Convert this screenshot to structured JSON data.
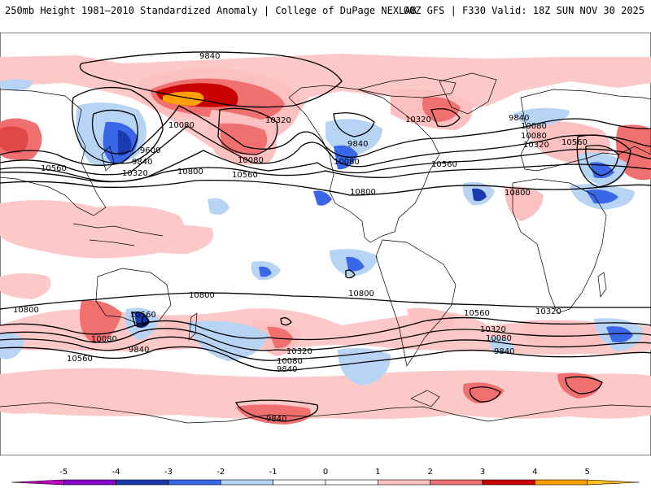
{
  "header": {
    "left_title": "250mb Height 1981–2010 Standardized Anomaly | College of DuPage NEXLAB",
    "right_title": "00Z GFS | F330 Valid: 18Z SUN NOV 30 2025"
  },
  "map": {
    "variable": "250mb Height Standardized Anomaly",
    "contour_labels": [
      "9840",
      "10080",
      "10320",
      "9600",
      "9840",
      "10560",
      "10320",
      "10080",
      "10800",
      "10560",
      "10080",
      "10320",
      "9840",
      "10080",
      "10560",
      "9840",
      "10080",
      "10320",
      "10560",
      "10800",
      "10800",
      "10800",
      "10800",
      "10800",
      "10320",
      "10560",
      "10080",
      "9840",
      "10560",
      "10320",
      "10080",
      "9840",
      "10560",
      "10320",
      "10080",
      "9840",
      "9840"
    ]
  },
  "legend": {
    "ticks": [
      "-5",
      "-4",
      "-3",
      "-2",
      "-1",
      "0",
      "1",
      "2",
      "3",
      "4",
      "5"
    ],
    "colors": [
      "#c000c0",
      "#8800cc",
      "#1a3ab0",
      "#3a66e8",
      "#b8d4f4",
      "#ffffff",
      "#ffffff",
      "#fcc0c0",
      "#f07070",
      "#c80000",
      "#ffa000",
      "#ffc020"
    ]
  }
}
